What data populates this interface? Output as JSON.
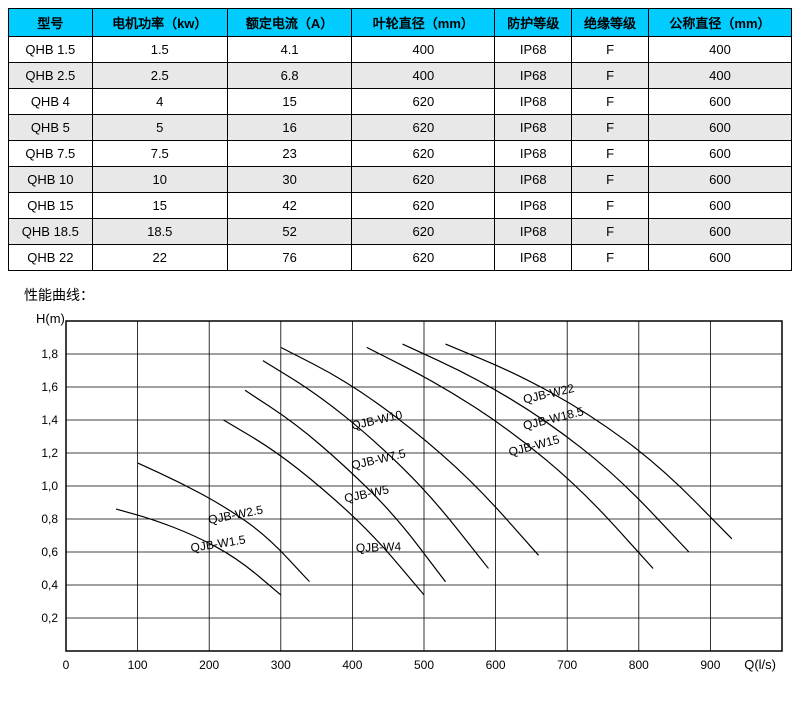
{
  "table": {
    "header_bg": "#00ccff",
    "row_alt_bg": "#e8e8e8",
    "border_color": "#000000",
    "columns": [
      "型号",
      "电机功率（kw）",
      "额定电流（A）",
      "叶轮直径（mm）",
      "防护等级",
      "绝缘等级",
      "公称直径（mm）"
    ],
    "rows": [
      [
        "QHB 1.5",
        "1.5",
        "4.1",
        "400",
        "IP68",
        "F",
        "400"
      ],
      [
        "QHB 2.5",
        "2.5",
        "6.8",
        "400",
        "IP68",
        "F",
        "400"
      ],
      [
        "QHB 4",
        "4",
        "15",
        "620",
        "IP68",
        "F",
        "600"
      ],
      [
        "QHB 5",
        "5",
        "16",
        "620",
        "IP68",
        "F",
        "600"
      ],
      [
        "QHB 7.5",
        "7.5",
        "23",
        "620",
        "IP68",
        "F",
        "600"
      ],
      [
        "QHB 10",
        "10",
        "30",
        "620",
        "IP68",
        "F",
        "600"
      ],
      [
        "QHB 15",
        "15",
        "42",
        "620",
        "IP68",
        "F",
        "600"
      ],
      [
        "QHB 18.5",
        "18.5",
        "52",
        "620",
        "IP68",
        "F",
        "600"
      ],
      [
        "QHB 22",
        "22",
        "76",
        "620",
        "IP68",
        "F",
        "600"
      ]
    ]
  },
  "caption": "性能曲线：",
  "chart": {
    "type": "line",
    "ylabel": "H(m)",
    "xlabel": "Q(l/s)",
    "xlim": [
      0,
      1000
    ],
    "ylim": [
      0,
      2.0
    ],
    "xticks": [
      0,
      100,
      200,
      300,
      400,
      500,
      600,
      700,
      800,
      900
    ],
    "yticks": [
      0.2,
      0.4,
      0.6,
      0.8,
      1.0,
      1.2,
      1.4,
      1.6,
      1.8
    ],
    "background_color": "#ffffff",
    "grid_color": "#000000",
    "curve_color": "#000000",
    "label_fontsize": 12,
    "curves": [
      {
        "label": "QJB-W1.5",
        "label_x": 175,
        "label_y": 0.6,
        "label_rot": -9,
        "pts": [
          [
            70,
            0.86
          ],
          [
            120,
            0.8
          ],
          [
            180,
            0.7
          ],
          [
            240,
            0.56
          ],
          [
            300,
            0.34
          ]
        ]
      },
      {
        "label": "QJB-W2.5",
        "label_x": 200,
        "label_y": 0.77,
        "label_rot": -11,
        "pts": [
          [
            100,
            1.14
          ],
          [
            160,
            1.02
          ],
          [
            220,
            0.88
          ],
          [
            280,
            0.7
          ],
          [
            340,
            0.42
          ]
        ]
      },
      {
        "label": "QJB-W4",
        "label_x": 405,
        "label_y": 0.6,
        "label_rot": -2,
        "pts": [
          [
            220,
            1.4
          ],
          [
            290,
            1.22
          ],
          [
            360,
            0.98
          ],
          [
            430,
            0.7
          ],
          [
            500,
            0.34
          ]
        ]
      },
      {
        "label": "QJB-W5",
        "label_x": 390,
        "label_y": 0.9,
        "label_rot": -12,
        "pts": [
          [
            250,
            1.58
          ],
          [
            320,
            1.38
          ],
          [
            390,
            1.12
          ],
          [
            460,
            0.82
          ],
          [
            530,
            0.42
          ]
        ]
      },
      {
        "label": "QJB-W7.5",
        "label_x": 400,
        "label_y": 1.1,
        "label_rot": -13,
        "pts": [
          [
            275,
            1.76
          ],
          [
            350,
            1.56
          ],
          [
            430,
            1.28
          ],
          [
            510,
            0.94
          ],
          [
            590,
            0.5
          ]
        ]
      },
      {
        "label": "QJB-W10",
        "label_x": 400,
        "label_y": 1.34,
        "label_rot": -13,
        "pts": [
          [
            300,
            1.84
          ],
          [
            390,
            1.64
          ],
          [
            480,
            1.36
          ],
          [
            570,
            1.02
          ],
          [
            660,
            0.58
          ]
        ]
      },
      {
        "label": "QJB-W15",
        "label_x": 620,
        "label_y": 1.18,
        "label_rot": -15,
        "pts": [
          [
            420,
            1.84
          ],
          [
            520,
            1.62
          ],
          [
            620,
            1.34
          ],
          [
            720,
            0.98
          ],
          [
            820,
            0.5
          ]
        ]
      },
      {
        "label": "QJB-W18.5",
        "label_x": 640,
        "label_y": 1.34,
        "label_rot": -14,
        "pts": [
          [
            470,
            1.86
          ],
          [
            570,
            1.66
          ],
          [
            670,
            1.4
          ],
          [
            770,
            1.06
          ],
          [
            870,
            0.6
          ]
        ]
      },
      {
        "label": "QJB-W22",
        "label_x": 640,
        "label_y": 1.5,
        "label_rot": -13,
        "pts": [
          [
            530,
            1.86
          ],
          [
            630,
            1.68
          ],
          [
            730,
            1.44
          ],
          [
            830,
            1.12
          ],
          [
            930,
            0.68
          ]
        ]
      }
    ]
  }
}
